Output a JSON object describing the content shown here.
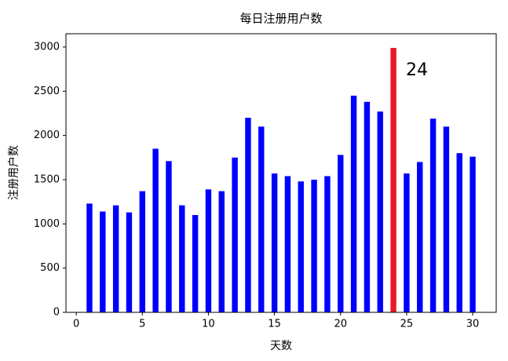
{
  "chart_data": {
    "type": "bar",
    "title": "每日注册用户数",
    "xlabel": "天数",
    "ylabel": "注册用户数",
    "annotation": "24",
    "x": [
      1,
      2,
      3,
      4,
      5,
      6,
      7,
      8,
      9,
      10,
      11,
      12,
      13,
      14,
      15,
      16,
      17,
      18,
      19,
      20,
      21,
      22,
      23,
      24,
      25,
      26,
      27,
      28,
      29,
      30
    ],
    "values": [
      1230,
      1140,
      1210,
      1130,
      1370,
      1850,
      1710,
      1210,
      1100,
      1390,
      1370,
      1750,
      2200,
      2100,
      1570,
      1540,
      1480,
      1500,
      1540,
      1780,
      2450,
      2380,
      2270,
      2990,
      1570,
      1700,
      2190,
      2100,
      1800,
      1760
    ],
    "colors": [
      "#0000ff",
      "#0000ff",
      "#0000ff",
      "#0000ff",
      "#0000ff",
      "#0000ff",
      "#0000ff",
      "#0000ff",
      "#0000ff",
      "#0000ff",
      "#0000ff",
      "#0000ff",
      "#0000ff",
      "#0000ff",
      "#0000ff",
      "#0000ff",
      "#0000ff",
      "#0000ff",
      "#0000ff",
      "#0000ff",
      "#0000ff",
      "#0000ff",
      "#0000ff",
      "#e8192c",
      "#0000ff",
      "#0000ff",
      "#0000ff",
      "#0000ff",
      "#0000ff",
      "#0000ff"
    ],
    "xlim": [
      -0.78,
      31.78
    ],
    "ylim": [
      0,
      3150
    ],
    "xticks": [
      0,
      5,
      10,
      15,
      20,
      25,
      30
    ],
    "yticks": [
      0,
      500,
      1000,
      1500,
      2000,
      2500,
      3000
    ],
    "grid": false
  }
}
